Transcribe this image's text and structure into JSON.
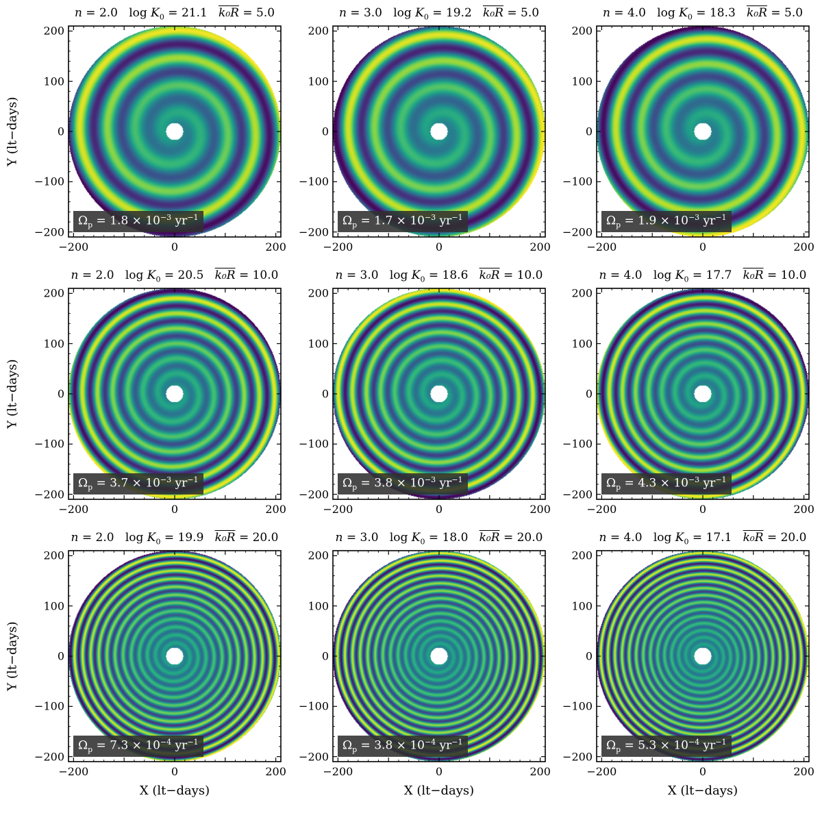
{
  "figure": {
    "x_axis_label": "X (lt−days)",
    "y_axis_label": "Y (lt−days)",
    "omega_unit": "yr"
  },
  "colormap": [
    "#440154",
    "#482878",
    "#3e4989",
    "#31688e",
    "#26828e",
    "#1f9e89",
    "#35b779",
    "#6ece58",
    "#b5de2b",
    "#fde725"
  ],
  "chart_data": [
    {
      "type": "heatmap",
      "n": "2.0",
      "logK0": "21.1",
      "k0R": "5.0",
      "omega_mant": "1.8",
      "omega_exp": "−3",
      "xlim": [
        -210,
        210
      ],
      "ylim": [
        -210,
        210
      ],
      "xticks": [
        -200,
        0,
        200
      ],
      "yticks": [
        -200,
        -100,
        0,
        100,
        200
      ],
      "r_inner": 17,
      "r_outer": 210,
      "spiral_pitch": 55,
      "dark_angle_deg": 145,
      "grid": false
    },
    {
      "type": "heatmap",
      "n": "3.0",
      "logK0": "19.2",
      "k0R": "5.0",
      "omega_mant": "1.7",
      "omega_exp": "−3",
      "xlim": [
        -210,
        210
      ],
      "ylim": [
        -210,
        210
      ],
      "xticks": [
        -200,
        0,
        200
      ],
      "yticks": [
        -200,
        -100,
        0,
        100,
        200
      ],
      "r_inner": 17,
      "r_outer": 210,
      "spiral_pitch": 52,
      "dark_angle_deg": 160,
      "grid": false
    },
    {
      "type": "heatmap",
      "n": "4.0",
      "logK0": "18.3",
      "k0R": "5.0",
      "omega_mant": "1.9",
      "omega_exp": "−3",
      "xlim": [
        -210,
        210
      ],
      "ylim": [
        -210,
        210
      ],
      "xticks": [
        -200,
        0,
        200
      ],
      "yticks": [
        -200,
        -100,
        0,
        100,
        200
      ],
      "r_inner": 17,
      "r_outer": 210,
      "spiral_pitch": 50,
      "dark_angle_deg": 155,
      "grid": false
    },
    {
      "type": "heatmap",
      "n": "2.0",
      "logK0": "20.5",
      "k0R": "10.0",
      "omega_mant": "3.7",
      "omega_exp": "−3",
      "xlim": [
        -210,
        210
      ],
      "ylim": [
        -210,
        210
      ],
      "xticks": [
        -200,
        0,
        200
      ],
      "yticks": [
        -200,
        -100,
        0,
        100,
        200
      ],
      "r_inner": 17,
      "r_outer": 210,
      "spiral_pitch": 30,
      "dark_angle_deg": 30,
      "grid": false
    },
    {
      "type": "heatmap",
      "n": "3.0",
      "logK0": "18.6",
      "k0R": "10.0",
      "omega_mant": "3.8",
      "omega_exp": "−3",
      "xlim": [
        -210,
        210
      ],
      "ylim": [
        -210,
        210
      ],
      "xticks": [
        -200,
        0,
        200
      ],
      "yticks": [
        -200,
        -100,
        0,
        100,
        200
      ],
      "r_inner": 17,
      "r_outer": 210,
      "spiral_pitch": 28,
      "dark_angle_deg": 45,
      "grid": false
    },
    {
      "type": "heatmap",
      "n": "4.0",
      "logK0": "17.7",
      "k0R": "10.0",
      "omega_mant": "4.3",
      "omega_exp": "−3",
      "xlim": [
        -210,
        210
      ],
      "ylim": [
        -210,
        210
      ],
      "xticks": [
        -200,
        0,
        200
      ],
      "yticks": [
        -200,
        -100,
        0,
        100,
        200
      ],
      "r_inner": 17,
      "r_outer": 210,
      "spiral_pitch": 26,
      "dark_angle_deg": 40,
      "grid": false
    },
    {
      "type": "heatmap",
      "n": "2.0",
      "logK0": "19.9",
      "k0R": "20.0",
      "omega_mant": "7.3",
      "omega_exp": "−4",
      "xlim": [
        -210,
        210
      ],
      "ylim": [
        -210,
        210
      ],
      "xticks": [
        -200,
        0,
        200
      ],
      "yticks": [
        -200,
        -100,
        0,
        100,
        200
      ],
      "r_inner": 17,
      "r_outer": 210,
      "spiral_pitch": 16,
      "dark_angle_deg": 135,
      "grid": false
    },
    {
      "type": "heatmap",
      "n": "3.0",
      "logK0": "18.0",
      "k0R": "20.0",
      "omega_mant": "3.8",
      "omega_exp": "−4",
      "xlim": [
        -210,
        210
      ],
      "ylim": [
        -210,
        210
      ],
      "xticks": [
        -200,
        0,
        200
      ],
      "yticks": [
        -200,
        -100,
        0,
        100,
        200
      ],
      "r_inner": 17,
      "r_outer": 210,
      "spiral_pitch": 15,
      "dark_angle_deg": 150,
      "grid": false
    },
    {
      "type": "heatmap",
      "n": "4.0",
      "logK0": "17.1",
      "k0R": "20.0",
      "omega_mant": "5.3",
      "omega_exp": "−4",
      "xlim": [
        -210,
        210
      ],
      "ylim": [
        -210,
        210
      ],
      "xticks": [
        -200,
        0,
        200
      ],
      "yticks": [
        -200,
        -100,
        0,
        100,
        200
      ],
      "r_inner": 17,
      "r_outer": 210,
      "spiral_pitch": 14,
      "dark_angle_deg": 150,
      "grid": false
    }
  ]
}
